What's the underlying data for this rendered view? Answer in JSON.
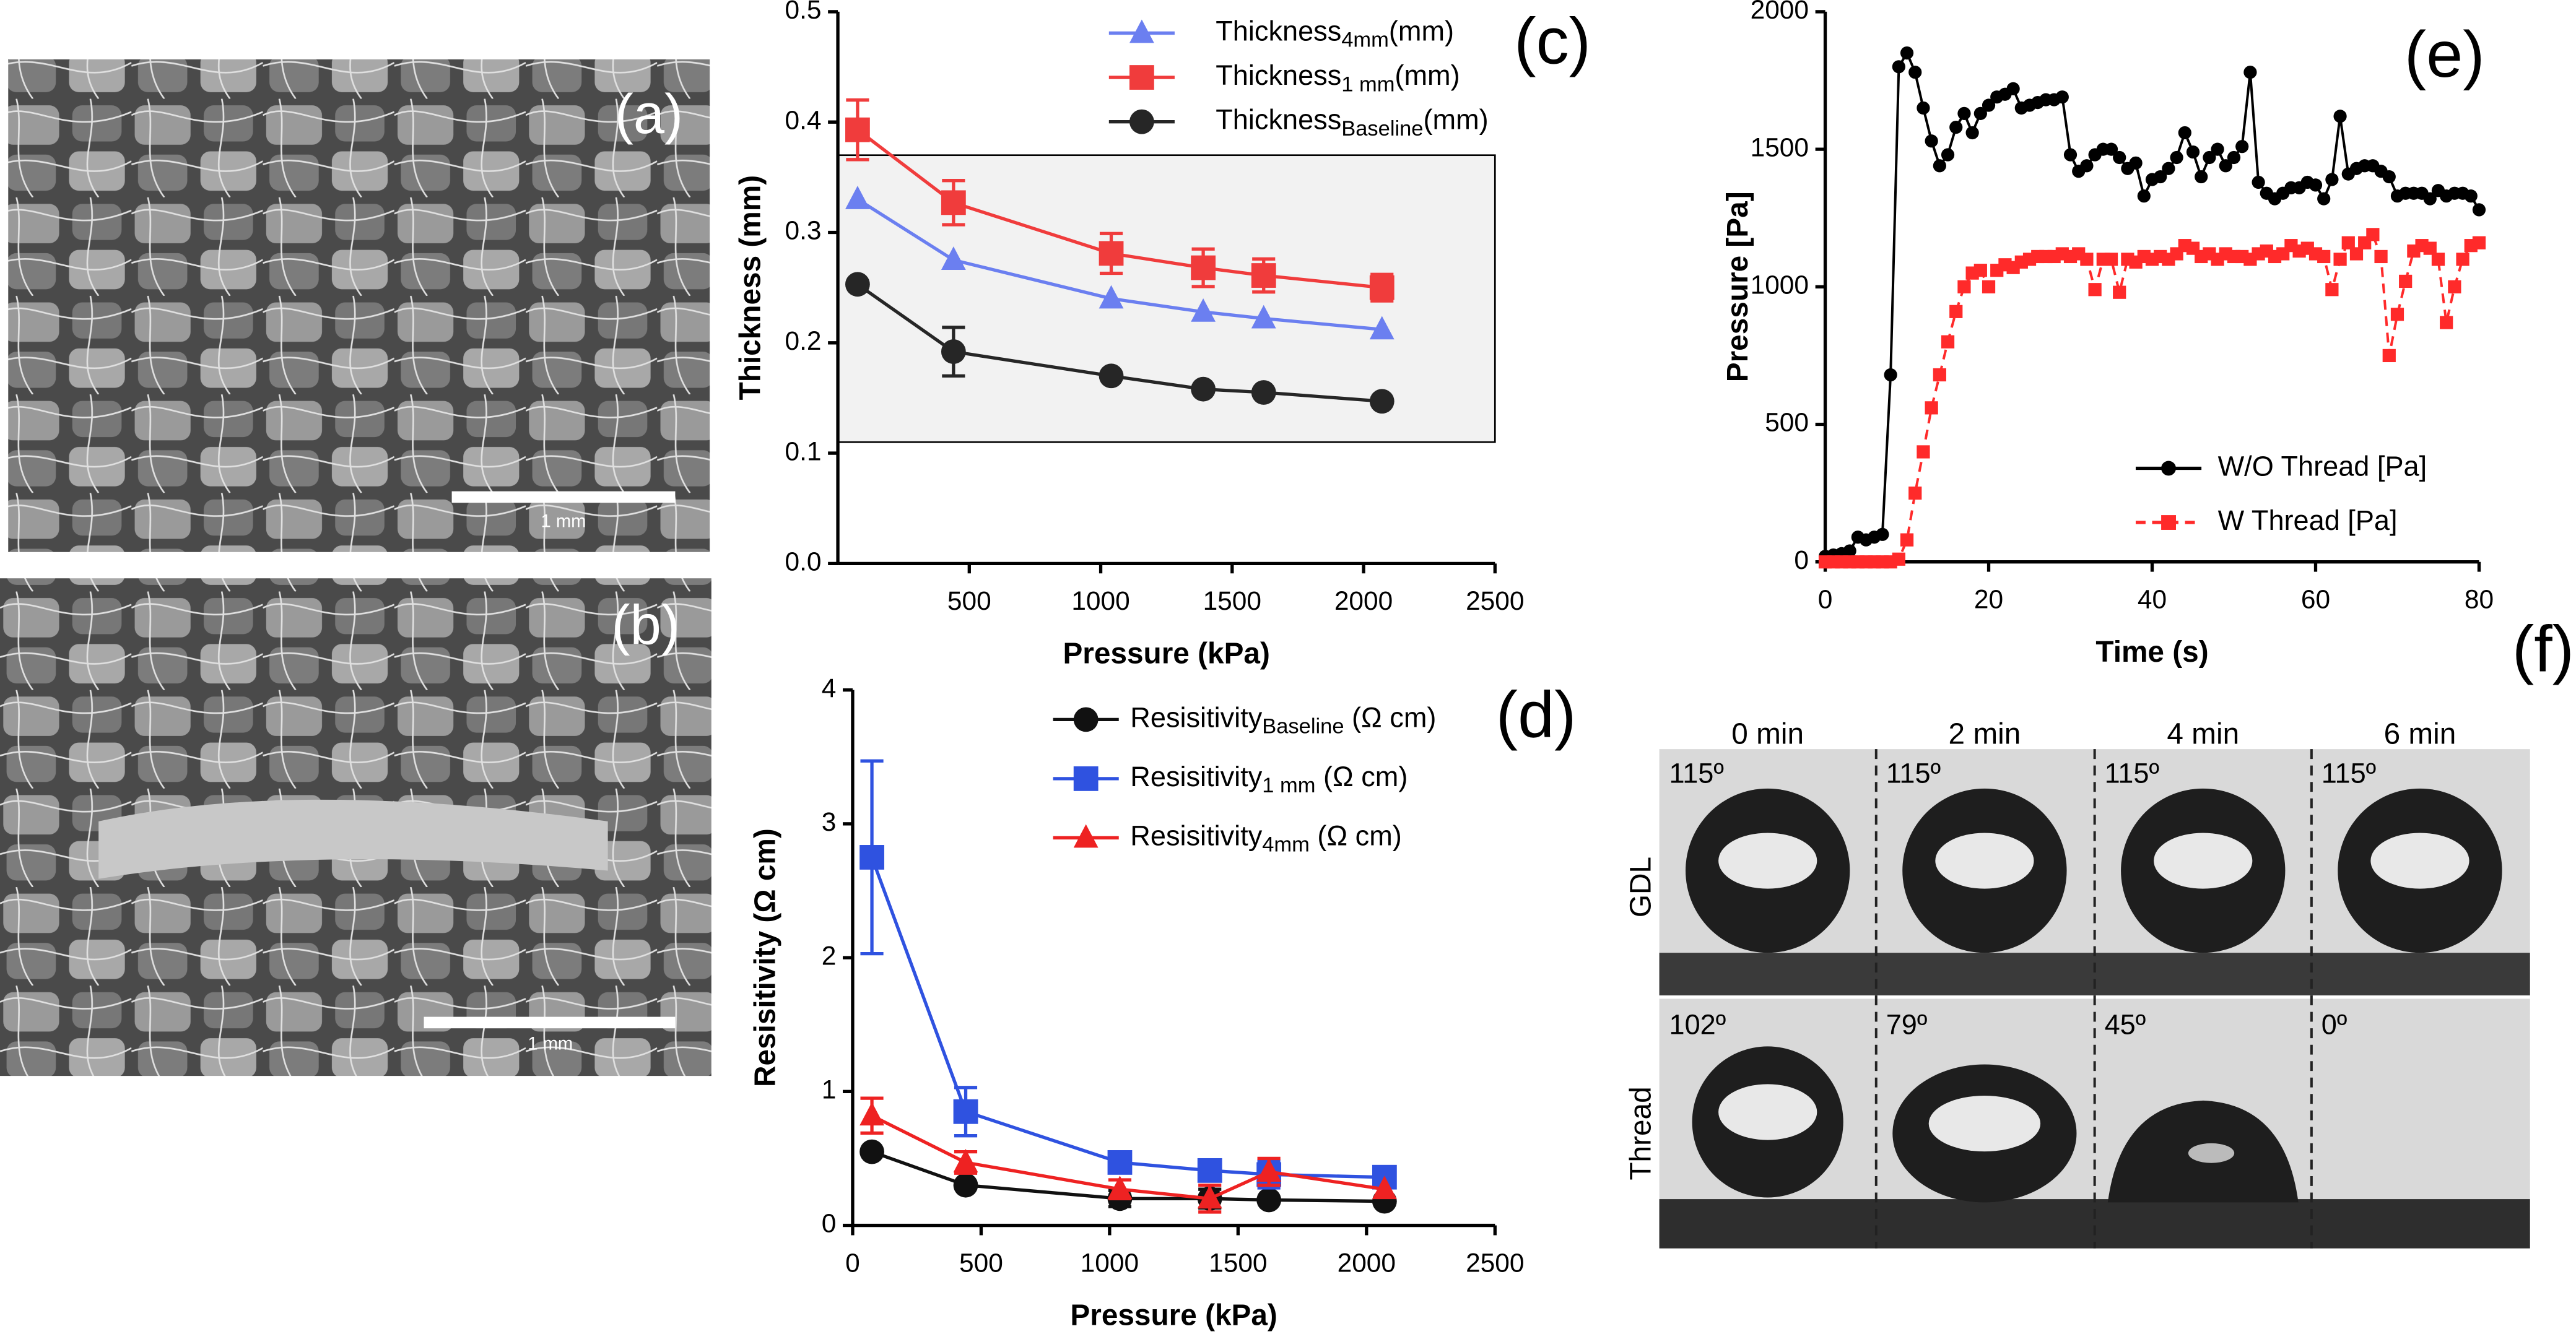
{
  "images": {
    "a": {
      "label": "(a)",
      "scale": "1 mm"
    },
    "b": {
      "label": "(b)",
      "scale": "1 mm"
    },
    "f": {
      "label": "(f)",
      "columns": [
        "0 min",
        "2 min",
        "4 min",
        "6 min"
      ],
      "rows": [
        {
          "name": "GDL",
          "angles": [
            "115º",
            "115º",
            "115º",
            "115º"
          ]
        },
        {
          "name": "Thread",
          "angles": [
            "102º",
            "79º",
            "45º",
            "0º"
          ]
        }
      ]
    }
  },
  "chart_data": [
    {
      "type": "line",
      "label": "(c)",
      "x_label": "Pressure (kPa)",
      "y_label": "Thickness (mm)",
      "xlim": [
        0,
        2500
      ],
      "ylim": [
        0,
        0.5
      ],
      "xticks": [
        500,
        1000,
        1500,
        2000,
        2500
      ],
      "yticks": [
        {
          "value": 0,
          "label": "0.0"
        },
        0.1,
        0.2,
        0.3,
        0.4,
        0.5
      ],
      "band": [
        0.11,
        0.37
      ],
      "x": [
        75,
        440,
        1040,
        1390,
        1620,
        2070
      ],
      "series": [
        {
          "name": "Thickness",
          "name_sub": "4mm",
          "name_suffix": "(mm)",
          "color": "#6b7ff0",
          "marker": "triangle",
          "values": [
            0.33,
            0.275,
            0.24,
            0.228,
            0.222,
            0.212
          ]
        },
        {
          "name": "Thickness",
          "name_sub": "1 mm",
          "name_suffix": "(mm)",
          "color": "#f03c3c",
          "marker": "square",
          "values": [
            0.393,
            0.327,
            0.281,
            0.268,
            0.261,
            0.25
          ],
          "errors": [
            0.027,
            0.02,
            0.018,
            0.017,
            0.015,
            0.012
          ]
        },
        {
          "name": "Thickness",
          "name_sub": "Baseline",
          "name_suffix": "(mm)",
          "color": "#262626",
          "marker": "circle",
          "values": [
            0.253,
            0.192,
            0.17,
            0.158,
            0.155,
            0.147
          ],
          "errors": [
            null,
            0.022,
            null,
            null,
            null,
            null
          ]
        }
      ]
    },
    {
      "type": "line",
      "label": "(d)",
      "x_label": "Pressure (kPa)",
      "y_label": "Resisitivity (Ω cm)",
      "xlim": [
        0,
        2500
      ],
      "ylim": [
        0,
        4
      ],
      "xticks": [
        0,
        500,
        1000,
        1500,
        2000,
        2500
      ],
      "yticks": [
        0,
        1,
        2,
        3,
        4
      ],
      "x": [
        75,
        440,
        1040,
        1390,
        1620,
        2070
      ],
      "series": [
        {
          "name": "Resisitivity",
          "name_sub": "Baseline",
          "name_suffix": " (Ω cm)",
          "color": "#111111",
          "marker": "circle",
          "values": [
            0.55,
            0.3,
            0.2,
            0.2,
            0.19,
            0.18
          ],
          "errors": [
            null,
            null,
            0.06,
            0.07,
            null,
            null
          ]
        },
        {
          "name": "Resisitivity",
          "name_sub": "1 mm",
          "name_suffix": " (Ω cm)",
          "color": "#2f52e0",
          "marker": "square",
          "values": [
            2.75,
            0.85,
            0.47,
            0.41,
            0.38,
            0.36
          ],
          "errors": [
            0.72,
            0.18,
            null,
            null,
            0.1,
            null
          ]
        },
        {
          "name": "Resisitivity",
          "name_sub": "4mm",
          "name_suffix": " (Ω cm)",
          "color": "#ee2222",
          "marker": "triangle",
          "values": [
            0.82,
            0.47,
            0.27,
            0.2,
            0.4,
            0.27
          ],
          "errors": [
            0.13,
            0.08,
            0.07,
            0.1,
            0.1,
            null
          ]
        }
      ]
    },
    {
      "type": "line",
      "label": "(e)",
      "x_label": "Time (s)",
      "y_label": "Pressure [Pa]",
      "xlim": [
        0,
        80
      ],
      "ylim": [
        0,
        2000
      ],
      "xticks": [
        0,
        20,
        40,
        60,
        80
      ],
      "yticks": [
        0,
        500,
        1000,
        1500,
        2000
      ],
      "x": [
        0,
        1,
        2,
        3,
        4,
        5,
        6,
        7,
        8,
        9,
        10,
        11,
        12,
        13,
        14,
        15,
        16,
        17,
        18,
        19,
        20,
        21,
        22,
        23,
        24,
        25,
        26,
        27,
        28,
        29,
        30,
        31,
        32,
        33,
        34,
        35,
        36,
        37,
        38,
        39,
        40,
        41,
        42,
        43,
        44,
        45,
        46,
        47,
        48,
        49,
        50,
        51,
        52,
        53,
        54,
        55,
        56,
        57,
        58,
        59,
        60,
        61,
        62,
        63,
        64,
        65,
        66,
        67,
        68,
        69,
        70,
        71,
        72,
        73,
        74,
        75,
        76,
        77,
        78,
        79,
        80
      ],
      "series": [
        {
          "name": "W/O Thread [Pa]",
          "color": "#000000",
          "marker": "circle",
          "small": true,
          "values": [
            20,
            25,
            30,
            40,
            90,
            80,
            90,
            100,
            680,
            1800,
            1850,
            1780,
            1650,
            1530,
            1440,
            1480,
            1580,
            1630,
            1560,
            1630,
            1660,
            1690,
            1700,
            1720,
            1650,
            1660,
            1670,
            1680,
            1680,
            1690,
            1480,
            1420,
            1440,
            1480,
            1500,
            1500,
            1470,
            1430,
            1450,
            1330,
            1390,
            1400,
            1430,
            1470,
            1560,
            1490,
            1400,
            1470,
            1500,
            1440,
            1470,
            1510,
            1780,
            1380,
            1340,
            1320,
            1340,
            1360,
            1360,
            1380,
            1370,
            1320,
            1390,
            1620,
            1410,
            1430,
            1440,
            1440,
            1420,
            1400,
            1330,
            1340,
            1340,
            1340,
            1320,
            1350,
            1330,
            1340,
            1340,
            1330,
            1280
          ]
        },
        {
          "name": "W Thread [Pa]",
          "color": "#ff2a2a",
          "marker": "square",
          "small": true,
          "dash": true,
          "values": [
            0,
            0,
            0,
            0,
            0,
            0,
            0,
            0,
            0,
            10,
            80,
            250,
            400,
            560,
            680,
            800,
            910,
            1000,
            1050,
            1060,
            1000,
            1060,
            1080,
            1070,
            1090,
            1100,
            1110,
            1110,
            1110,
            1120,
            1110,
            1120,
            1100,
            990,
            1100,
            1100,
            980,
            1100,
            1090,
            1110,
            1100,
            1110,
            1100,
            1120,
            1150,
            1140,
            1110,
            1120,
            1100,
            1120,
            1110,
            1110,
            1100,
            1120,
            1130,
            1110,
            1120,
            1150,
            1130,
            1140,
            1120,
            1110,
            990,
            1100,
            1160,
            1120,
            1160,
            1190,
            1110,
            750,
            900,
            1020,
            1130,
            1150,
            1140,
            1100,
            870,
            1000,
            1100,
            1150,
            1160
          ]
        }
      ]
    }
  ]
}
